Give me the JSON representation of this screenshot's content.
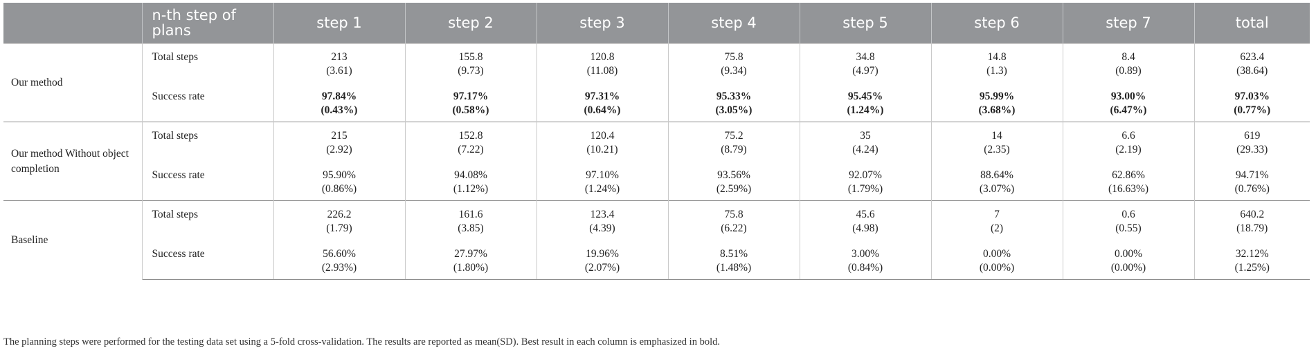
{
  "header": {
    "blank": "",
    "row_label": "n-th step of plans",
    "columns": [
      "step 1",
      "step 2",
      "step 3",
      "step 4",
      "step 5",
      "step 6",
      "step 7",
      "total"
    ]
  },
  "groups": [
    {
      "method": "Our method",
      "rows": [
        {
          "metric": "Total steps",
          "cells": [
            {
              "value": "213",
              "sd": "(3.61)",
              "bold": false
            },
            {
              "value": "155.8",
              "sd": "(9.73)",
              "bold": false
            },
            {
              "value": "120.8",
              "sd": "(11.08)",
              "bold": false
            },
            {
              "value": "75.8",
              "sd": "(9.34)",
              "bold": false
            },
            {
              "value": "34.8",
              "sd": "(4.97)",
              "bold": false
            },
            {
              "value": "14.8",
              "sd": "(1.3)",
              "bold": false
            },
            {
              "value": "8.4",
              "sd": "(0.89)",
              "bold": false
            },
            {
              "value": "623.4",
              "sd": "(38.64)",
              "bold": false
            }
          ]
        },
        {
          "metric": "Success rate",
          "cells": [
            {
              "value": "97.84%",
              "sd": "(0.43%)",
              "bold": true
            },
            {
              "value": "97.17%",
              "sd": "(0.58%)",
              "bold": true
            },
            {
              "value": "97.31%",
              "sd": "(0.64%)",
              "bold": true
            },
            {
              "value": "95.33%",
              "sd": "(3.05%)",
              "bold": true
            },
            {
              "value": "95.45%",
              "sd": "(1.24%)",
              "bold": true
            },
            {
              "value": "95.99%",
              "sd": "(3.68%)",
              "bold": true
            },
            {
              "value": "93.00%",
              "sd": "(6.47%)",
              "bold": true
            },
            {
              "value": "97.03%",
              "sd": "(0.77%)",
              "bold": true
            }
          ]
        }
      ]
    },
    {
      "method": "Our method Without object completion",
      "rows": [
        {
          "metric": "Total steps",
          "cells": [
            {
              "value": "215",
              "sd": "(2.92)",
              "bold": false
            },
            {
              "value": "152.8",
              "sd": "(7.22)",
              "bold": false
            },
            {
              "value": "120.4",
              "sd": "(10.21)",
              "bold": false
            },
            {
              "value": "75.2",
              "sd": "(8.79)",
              "bold": false
            },
            {
              "value": "35",
              "sd": "(4.24)",
              "bold": false
            },
            {
              "value": "14",
              "sd": "(2.35)",
              "bold": false
            },
            {
              "value": "6.6",
              "sd": "(2.19)",
              "bold": false
            },
            {
              "value": "619",
              "sd": "(29.33)",
              "bold": false
            }
          ]
        },
        {
          "metric": "Success rate",
          "cells": [
            {
              "value": "95.90%",
              "sd": "(0.86%)",
              "bold": false
            },
            {
              "value": "94.08%",
              "sd": "(1.12%)",
              "bold": false
            },
            {
              "value": "97.10%",
              "sd": "(1.24%)",
              "bold": false
            },
            {
              "value": "93.56%",
              "sd": "(2.59%)",
              "bold": false
            },
            {
              "value": "92.07%",
              "sd": "(1.79%)",
              "bold": false
            },
            {
              "value": "88.64%",
              "sd": "(3.07%)",
              "bold": false
            },
            {
              "value": "62.86%",
              "sd": "(16.63%)",
              "bold": false
            },
            {
              "value": "94.71%",
              "sd": "(0.76%)",
              "bold": false
            }
          ]
        }
      ]
    },
    {
      "method": "Baseline",
      "rows": [
        {
          "metric": "Total steps",
          "cells": [
            {
              "value": "226.2",
              "sd": "(1.79)",
              "bold": false
            },
            {
              "value": "161.6",
              "sd": "(3.85)",
              "bold": false
            },
            {
              "value": "123.4",
              "sd": "(4.39)",
              "bold": false
            },
            {
              "value": "75.8",
              "sd": "(6.22)",
              "bold": false
            },
            {
              "value": "45.6",
              "sd": "(4.98)",
              "bold": false
            },
            {
              "value": "7",
              "sd": "(2)",
              "bold": false
            },
            {
              "value": "0.6",
              "sd": "(0.55)",
              "bold": false
            },
            {
              "value": "640.2",
              "sd": "(18.79)",
              "bold": false
            }
          ]
        },
        {
          "metric": "Success rate",
          "cells": [
            {
              "value": "56.60%",
              "sd": "(2.93%)",
              "bold": false
            },
            {
              "value": "27.97%",
              "sd": "(1.80%)",
              "bold": false
            },
            {
              "value": "19.96%",
              "sd": "(2.07%)",
              "bold": false
            },
            {
              "value": "8.51%",
              "sd": "(1.48%)",
              "bold": false
            },
            {
              "value": "3.00%",
              "sd": "(0.84%)",
              "bold": false
            },
            {
              "value": "0.00%",
              "sd": "(0.00%)",
              "bold": false
            },
            {
              "value": "0.00%",
              "sd": "(0.00%)",
              "bold": false
            },
            {
              "value": "32.12%",
              "sd": "(1.25%)",
              "bold": false
            }
          ]
        }
      ]
    }
  ],
  "caption": "The planning steps were performed for the testing data set using a 5-fold cross-validation. The results are reported as mean(SD). Best result in each column is emphasized in bold."
}
